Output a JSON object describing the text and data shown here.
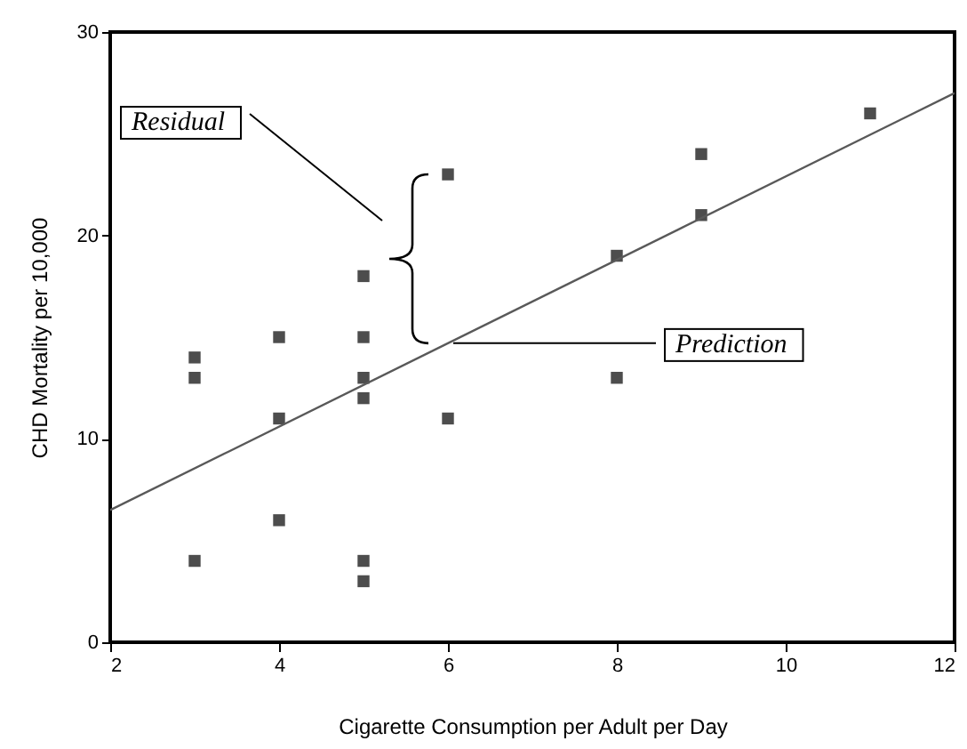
{
  "chart_data": {
    "type": "scatter",
    "xlabel": "Cigarette Consumption per Adult per Day",
    "ylabel": "CHD Mortality per 10,000",
    "series": [
      {
        "color": "#4d4d4d",
        "x": [
          3,
          3,
          3,
          4,
          4,
          4,
          5,
          5,
          5,
          5,
          5,
          5,
          6,
          6,
          8,
          8,
          9,
          9,
          11
        ],
        "values": [
          14,
          13,
          4,
          15,
          11,
          6,
          18,
          15,
          13,
          12,
          4,
          3,
          23,
          11,
          19,
          13,
          24,
          21,
          26
        ]
      },
      {
        "type": "line",
        "marker": "none",
        "color": "#595959",
        "x": [
          2,
          12
        ],
        "values": [
          6.5,
          27
        ]
      }
    ],
    "marker": "square",
    "grid": false,
    "xlim": [
      2,
      12
    ],
    "xticks": [
      2,
      4,
      6,
      8,
      10,
      12
    ],
    "ylim": [
      0,
      30
    ],
    "yticks": [
      0,
      10,
      20,
      30
    ],
    "annotations": [
      "Residual",
      {
        "text": "Prediction",
        "x": 6,
        "y": 14.7
      }
    ]
  }
}
